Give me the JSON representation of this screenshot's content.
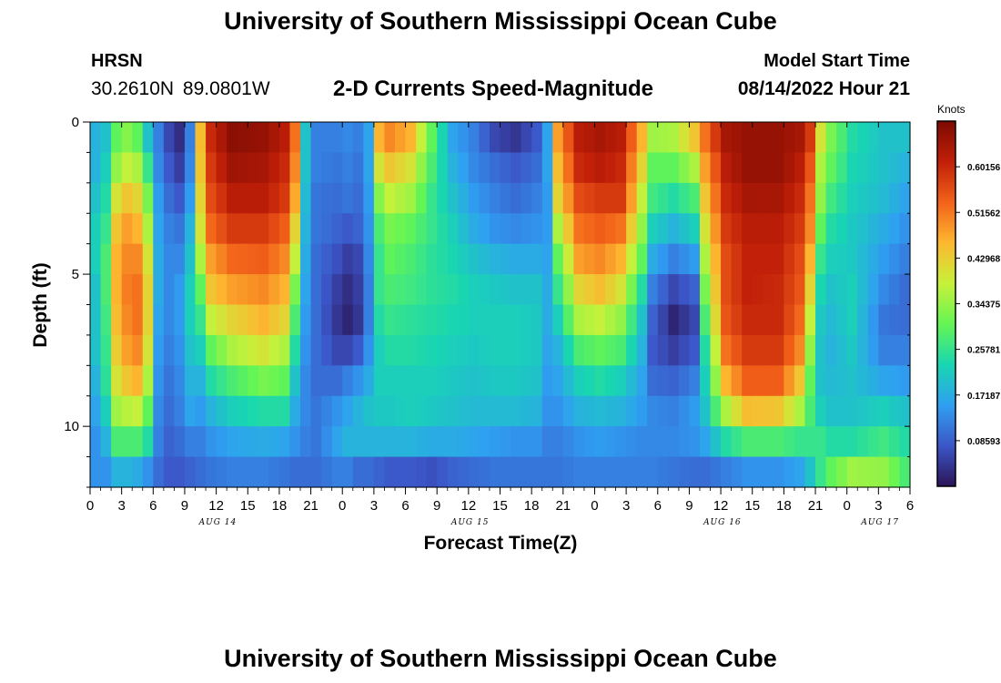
{
  "header": {
    "title": "University of Southern Mississippi Ocean Cube",
    "station": "HRSN",
    "coords": "30.2610N  89.0801W",
    "subtitle": "2-D Currents Speed-Magnitude",
    "model_start_label": "Model Start Time",
    "model_start_value": "08/14/2022 Hour 21"
  },
  "footer": {
    "title": "University of Southern Mississippi Ocean Cube"
  },
  "colorbar": {
    "unit": "Knots",
    "tick_labels": [
      "0.60156",
      "0.51562",
      "0.42968",
      "0.34375",
      "0.25781",
      "0.17187",
      "0.08593"
    ],
    "tick_values": [
      0.60156,
      0.51562,
      0.42968,
      0.34375,
      0.25781,
      0.17187,
      0.08593
    ],
    "range": [
      0.0,
      0.6875
    ],
    "colors": [
      "#2b1457",
      "#3c56c8",
      "#2f9ff2",
      "#18d6b2",
      "#64f554",
      "#c7f13a",
      "#fdb72f",
      "#f2621a",
      "#c11f08",
      "#7c0a02"
    ]
  },
  "chart_data": {
    "type": "heatmap",
    "title": "2-D Currents Speed-Magnitude",
    "xlabel": "Forecast Time(Z)",
    "ylabel": "Depth (ft)",
    "x_tick_labels": [
      "0",
      "3",
      "6",
      "9",
      "12",
      "15",
      "18",
      "21",
      "0",
      "3",
      "6",
      "9",
      "12",
      "15",
      "18",
      "21",
      "0",
      "3",
      "6",
      "9",
      "12",
      "15",
      "18",
      "21",
      "0",
      "3",
      "6"
    ],
    "x_range_hours": [
      0,
      78
    ],
    "date_labels": [
      {
        "text": "AUG 14",
        "hour": 12
      },
      {
        "text": "AUG 15",
        "hour": 36
      },
      {
        "text": "AUG 16",
        "hour": 60
      },
      {
        "text": "AUG 17",
        "hour": 75
      }
    ],
    "y_tick_labels": [
      "0",
      "5",
      "10"
    ],
    "y_tick_values": [
      0,
      5,
      10
    ],
    "y_range": [
      0,
      12
    ],
    "value_unit": "Knots",
    "value_range": [
      0.0,
      0.6875
    ],
    "depth_levels": 12,
    "time_steps": 78,
    "profiles": [
      {
        "t": 0,
        "v": [
          0.18,
          0.18,
          0.2,
          0.22,
          0.22,
          0.2,
          0.2,
          0.2,
          0.18,
          0.16,
          0.14,
          0.14
        ]
      },
      {
        "t": 1,
        "v": [
          0.2,
          0.22,
          0.24,
          0.26,
          0.28,
          0.28,
          0.27,
          0.26,
          0.25,
          0.22,
          0.18,
          0.14
        ]
      },
      {
        "t": 2,
        "v": [
          0.3,
          0.34,
          0.4,
          0.44,
          0.46,
          0.46,
          0.45,
          0.43,
          0.4,
          0.35,
          0.28,
          0.18
        ]
      },
      {
        "t": 3,
        "v": [
          0.33,
          0.38,
          0.44,
          0.48,
          0.5,
          0.51,
          0.5,
          0.48,
          0.44,
          0.37,
          0.28,
          0.18
        ]
      },
      {
        "t": 4,
        "v": [
          0.3,
          0.36,
          0.42,
          0.46,
          0.5,
          0.52,
          0.52,
          0.5,
          0.46,
          0.38,
          0.28,
          0.17
        ]
      },
      {
        "t": 5,
        "v": [
          0.2,
          0.26,
          0.32,
          0.36,
          0.4,
          0.42,
          0.42,
          0.4,
          0.36,
          0.3,
          0.24,
          0.14
        ]
      },
      {
        "t": 6,
        "v": [
          0.12,
          0.13,
          0.15,
          0.16,
          0.17,
          0.17,
          0.16,
          0.15,
          0.14,
          0.13,
          0.12,
          0.1
        ]
      },
      {
        "t": 7,
        "v": [
          0.06,
          0.08,
          0.1,
          0.12,
          0.13,
          0.13,
          0.13,
          0.12,
          0.11,
          0.1,
          0.09,
          0.08
        ]
      },
      {
        "t": 8,
        "v": [
          0.03,
          0.05,
          0.08,
          0.11,
          0.13,
          0.15,
          0.15,
          0.14,
          0.13,
          0.12,
          0.1,
          0.08
        ]
      },
      {
        "t": 9,
        "v": [
          0.12,
          0.13,
          0.15,
          0.18,
          0.2,
          0.22,
          0.22,
          0.2,
          0.18,
          0.16,
          0.12,
          0.09
        ]
      },
      {
        "t": 10,
        "v": [
          0.45,
          0.44,
          0.42,
          0.4,
          0.36,
          0.3,
          0.26,
          0.22,
          0.18,
          0.15,
          0.12,
          0.1
        ]
      },
      {
        "t": 11,
        "v": [
          0.6,
          0.58,
          0.56,
          0.53,
          0.48,
          0.44,
          0.38,
          0.3,
          0.24,
          0.18,
          0.14,
          0.11
        ]
      },
      {
        "t": 13,
        "v": [
          0.67,
          0.65,
          0.62,
          0.58,
          0.53,
          0.48,
          0.42,
          0.36,
          0.28,
          0.22,
          0.16,
          0.12
        ]
      },
      {
        "t": 16,
        "v": [
          0.66,
          0.64,
          0.62,
          0.58,
          0.54,
          0.5,
          0.46,
          0.4,
          0.32,
          0.24,
          0.17,
          0.12
        ]
      },
      {
        "t": 18,
        "v": [
          0.62,
          0.6,
          0.58,
          0.54,
          0.5,
          0.46,
          0.42,
          0.36,
          0.3,
          0.24,
          0.16,
          0.11
        ]
      },
      {
        "t": 19,
        "v": [
          0.52,
          0.5,
          0.47,
          0.42,
          0.38,
          0.32,
          0.28,
          0.24,
          0.2,
          0.17,
          0.14,
          0.1
        ]
      },
      {
        "t": 20,
        "v": [
          0.2,
          0.2,
          0.19,
          0.18,
          0.17,
          0.16,
          0.15,
          0.14,
          0.13,
          0.13,
          0.12,
          0.1
        ]
      },
      {
        "t": 21,
        "v": [
          0.12,
          0.12,
          0.11,
          0.11,
          0.1,
          0.1,
          0.1,
          0.1,
          0.1,
          0.11,
          0.11,
          0.1
        ]
      },
      {
        "t": 23,
        "v": [
          0.12,
          0.11,
          0.1,
          0.09,
          0.07,
          0.05,
          0.04,
          0.06,
          0.1,
          0.14,
          0.16,
          0.12
        ]
      },
      {
        "t": 24,
        "v": [
          0.13,
          0.12,
          0.11,
          0.08,
          0.05,
          0.03,
          0.02,
          0.06,
          0.12,
          0.16,
          0.18,
          0.12
        ]
      },
      {
        "t": 25,
        "v": [
          0.12,
          0.11,
          0.1,
          0.09,
          0.06,
          0.05,
          0.04,
          0.08,
          0.14,
          0.18,
          0.18,
          0.1
        ]
      },
      {
        "t": 26,
        "v": [
          0.16,
          0.16,
          0.15,
          0.14,
          0.13,
          0.12,
          0.12,
          0.14,
          0.17,
          0.2,
          0.18,
          0.1
        ]
      },
      {
        "t": 27,
        "v": [
          0.46,
          0.4,
          0.33,
          0.28,
          0.26,
          0.26,
          0.24,
          0.22,
          0.22,
          0.21,
          0.18,
          0.09
        ]
      },
      {
        "t": 28,
        "v": [
          0.5,
          0.44,
          0.38,
          0.32,
          0.3,
          0.28,
          0.26,
          0.24,
          0.22,
          0.21,
          0.18,
          0.08
        ]
      },
      {
        "t": 30,
        "v": [
          0.46,
          0.4,
          0.35,
          0.3,
          0.28,
          0.27,
          0.25,
          0.24,
          0.22,
          0.22,
          0.18,
          0.08
        ]
      },
      {
        "t": 32,
        "v": [
          0.3,
          0.28,
          0.26,
          0.26,
          0.25,
          0.25,
          0.24,
          0.23,
          0.22,
          0.21,
          0.17,
          0.07
        ]
      },
      {
        "t": 34,
        "v": [
          0.16,
          0.18,
          0.2,
          0.22,
          0.23,
          0.24,
          0.23,
          0.22,
          0.21,
          0.2,
          0.17,
          0.09
        ]
      },
      {
        "t": 36,
        "v": [
          0.12,
          0.13,
          0.15,
          0.17,
          0.2,
          0.22,
          0.22,
          0.21,
          0.2,
          0.19,
          0.16,
          0.1
        ]
      },
      {
        "t": 38,
        "v": [
          0.06,
          0.1,
          0.12,
          0.14,
          0.18,
          0.21,
          0.22,
          0.22,
          0.21,
          0.19,
          0.15,
          0.11
        ]
      },
      {
        "t": 40,
        "v": [
          0.04,
          0.08,
          0.1,
          0.13,
          0.17,
          0.2,
          0.22,
          0.22,
          0.21,
          0.19,
          0.14,
          0.11
        ]
      },
      {
        "t": 42,
        "v": [
          0.08,
          0.1,
          0.12,
          0.14,
          0.17,
          0.2,
          0.21,
          0.21,
          0.2,
          0.18,
          0.14,
          0.11
        ]
      },
      {
        "t": 43,
        "v": [
          0.16,
          0.16,
          0.15,
          0.15,
          0.16,
          0.17,
          0.17,
          0.16,
          0.15,
          0.14,
          0.12,
          0.11
        ]
      },
      {
        "t": 44,
        "v": [
          0.48,
          0.45,
          0.42,
          0.36,
          0.3,
          0.26,
          0.22,
          0.18,
          0.16,
          0.14,
          0.12,
          0.11
        ]
      },
      {
        "t": 46,
        "v": [
          0.62,
          0.6,
          0.56,
          0.52,
          0.48,
          0.42,
          0.36,
          0.28,
          0.22,
          0.18,
          0.14,
          0.12
        ]
      },
      {
        "t": 48,
        "v": [
          0.64,
          0.62,
          0.58,
          0.54,
          0.5,
          0.45,
          0.38,
          0.3,
          0.24,
          0.19,
          0.15,
          0.12
        ]
      },
      {
        "t": 50,
        "v": [
          0.62,
          0.6,
          0.58,
          0.52,
          0.46,
          0.4,
          0.34,
          0.28,
          0.22,
          0.18,
          0.14,
          0.12
        ]
      },
      {
        "t": 52,
        "v": [
          0.46,
          0.42,
          0.38,
          0.34,
          0.3,
          0.24,
          0.2,
          0.18,
          0.16,
          0.15,
          0.13,
          0.12
        ]
      },
      {
        "t": 53,
        "v": [
          0.35,
          0.3,
          0.27,
          0.22,
          0.17,
          0.12,
          0.09,
          0.08,
          0.1,
          0.13,
          0.13,
          0.12
        ]
      },
      {
        "t": 55,
        "v": [
          0.36,
          0.3,
          0.24,
          0.18,
          0.12,
          0.06,
          0.02,
          0.05,
          0.09,
          0.12,
          0.13,
          0.11
        ]
      },
      {
        "t": 57,
        "v": [
          0.44,
          0.36,
          0.28,
          0.22,
          0.15,
          0.09,
          0.06,
          0.08,
          0.12,
          0.15,
          0.14,
          0.1
        ]
      },
      {
        "t": 58,
        "v": [
          0.52,
          0.48,
          0.44,
          0.4,
          0.36,
          0.32,
          0.28,
          0.24,
          0.22,
          0.2,
          0.16,
          0.1
        ]
      },
      {
        "t": 60,
        "v": [
          0.64,
          0.62,
          0.6,
          0.58,
          0.56,
          0.56,
          0.55,
          0.52,
          0.46,
          0.36,
          0.24,
          0.12
        ]
      },
      {
        "t": 62,
        "v": [
          0.66,
          0.66,
          0.64,
          0.62,
          0.61,
          0.61,
          0.6,
          0.58,
          0.54,
          0.45,
          0.28,
          0.14
        ]
      },
      {
        "t": 65,
        "v": [
          0.66,
          0.66,
          0.64,
          0.62,
          0.61,
          0.6,
          0.6,
          0.58,
          0.54,
          0.44,
          0.28,
          0.14
        ]
      },
      {
        "t": 67,
        "v": [
          0.64,
          0.62,
          0.6,
          0.58,
          0.56,
          0.55,
          0.53,
          0.5,
          0.44,
          0.36,
          0.26,
          0.16
        ]
      },
      {
        "t": 68,
        "v": [
          0.58,
          0.55,
          0.52,
          0.5,
          0.46,
          0.42,
          0.38,
          0.34,
          0.3,
          0.28,
          0.26,
          0.2
        ]
      },
      {
        "t": 69,
        "v": [
          0.4,
          0.36,
          0.34,
          0.3,
          0.26,
          0.23,
          0.21,
          0.2,
          0.2,
          0.22,
          0.26,
          0.26
        ]
      },
      {
        "t": 70,
        "v": [
          0.32,
          0.3,
          0.27,
          0.24,
          0.22,
          0.2,
          0.19,
          0.18,
          0.19,
          0.2,
          0.24,
          0.3
        ]
      },
      {
        "t": 72,
        "v": [
          0.24,
          0.23,
          0.22,
          0.21,
          0.21,
          0.22,
          0.22,
          0.21,
          0.2,
          0.2,
          0.24,
          0.35
        ]
      },
      {
        "t": 75,
        "v": [
          0.2,
          0.2,
          0.19,
          0.17,
          0.15,
          0.13,
          0.11,
          0.12,
          0.16,
          0.22,
          0.27,
          0.34
        ]
      },
      {
        "t": 77,
        "v": [
          0.2,
          0.18,
          0.16,
          0.14,
          0.12,
          0.1,
          0.1,
          0.12,
          0.15,
          0.2,
          0.24,
          0.28
        ]
      }
    ]
  }
}
